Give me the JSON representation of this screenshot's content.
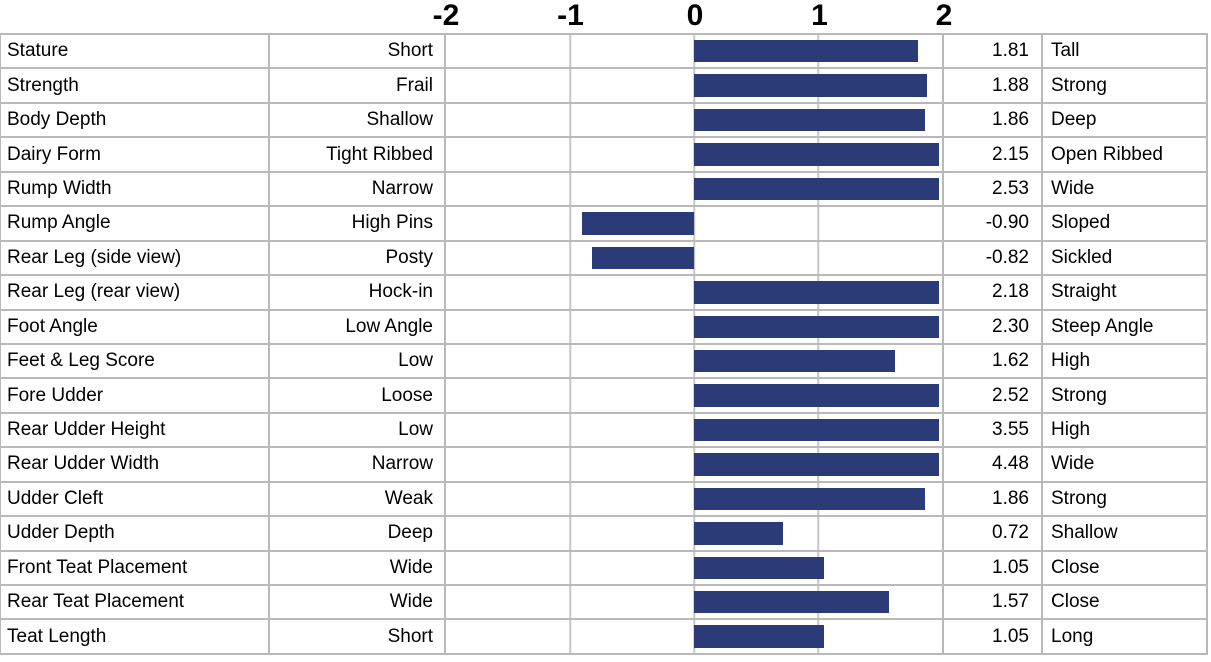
{
  "chart_data": {
    "type": "bar",
    "orientation": "horizontal",
    "title": "",
    "xlabel": "",
    "ylabel": "",
    "xlim": [
      -2,
      2
    ],
    "axis_tick_labels": [
      "-2",
      "-1",
      "0",
      "1",
      "2"
    ],
    "axis_tick_values": [
      -2,
      -1,
      0,
      1,
      2
    ],
    "grid": true,
    "bars_clipped_at_axis_max": true,
    "categories": [
      "Stature",
      "Strength",
      "Body Depth",
      "Dairy Form",
      "Rump Width",
      "Rump Angle",
      "Rear Leg (side view)",
      "Rear Leg (rear view)",
      "Foot Angle",
      "Feet & Leg Score",
      "Fore Udder",
      "Rear Udder Height",
      "Rear Udder Width",
      "Udder Cleft",
      "Udder Depth",
      "Front Teat Placement",
      "Rear Teat Placement",
      "Teat Length"
    ],
    "values": [
      1.81,
      1.88,
      1.86,
      2.15,
      2.53,
      -0.9,
      -0.82,
      2.18,
      2.3,
      1.62,
      2.52,
      3.55,
      4.48,
      1.86,
      0.72,
      1.05,
      1.57,
      1.05
    ],
    "rows": [
      {
        "trait": "Stature",
        "low": "Short",
        "value": 1.81,
        "value_display": "1.81",
        "high": "Tall"
      },
      {
        "trait": "Strength",
        "low": "Frail",
        "value": 1.88,
        "value_display": "1.88",
        "high": "Strong"
      },
      {
        "trait": "Body Depth",
        "low": "Shallow",
        "value": 1.86,
        "value_display": "1.86",
        "high": "Deep"
      },
      {
        "trait": "Dairy Form",
        "low": "Tight Ribbed",
        "value": 2.15,
        "value_display": "2.15",
        "high": "Open Ribbed"
      },
      {
        "trait": "Rump Width",
        "low": "Narrow",
        "value": 2.53,
        "value_display": "2.53",
        "high": "Wide"
      },
      {
        "trait": "Rump Angle",
        "low": "High Pins",
        "value": -0.9,
        "value_display": "-0.90",
        "high": "Sloped"
      },
      {
        "trait": "Rear Leg (side view)",
        "low": "Posty",
        "value": -0.82,
        "value_display": "-0.82",
        "high": "Sickled"
      },
      {
        "trait": "Rear Leg (rear view)",
        "low": "Hock-in",
        "value": 2.18,
        "value_display": "2.18",
        "high": "Straight"
      },
      {
        "trait": "Foot Angle",
        "low": "Low Angle",
        "value": 2.3,
        "value_display": "2.30",
        "high": "Steep Angle"
      },
      {
        "trait": "Feet & Leg Score",
        "low": "Low",
        "value": 1.62,
        "value_display": "1.62",
        "high": "High"
      },
      {
        "trait": "Fore Udder",
        "low": "Loose",
        "value": 2.52,
        "value_display": "2.52",
        "high": "Strong"
      },
      {
        "trait": "Rear Udder Height",
        "low": "Low",
        "value": 3.55,
        "value_display": "3.55",
        "high": "High"
      },
      {
        "trait": "Rear Udder Width",
        "low": "Narrow",
        "value": 4.48,
        "value_display": "4.48",
        "high": "Wide"
      },
      {
        "trait": "Udder Cleft",
        "low": "Weak",
        "value": 1.86,
        "value_display": "1.86",
        "high": "Strong"
      },
      {
        "trait": "Udder Depth",
        "low": "Deep",
        "value": 0.72,
        "value_display": "0.72",
        "high": "Shallow"
      },
      {
        "trait": "Front Teat Placement",
        "low": "Wide",
        "value": 1.05,
        "value_display": "1.05",
        "high": "Close"
      },
      {
        "trait": "Rear Teat Placement",
        "low": "Wide",
        "value": 1.57,
        "value_display": "1.57",
        "high": "Close"
      },
      {
        "trait": "Teat Length",
        "low": "Short",
        "value": 1.05,
        "value_display": "1.05",
        "high": "Long"
      }
    ],
    "colors": {
      "bar": "#2B3B78",
      "cell_border": "#b9b9b9",
      "grid_line": "#c6c6c6",
      "text": "#000000",
      "background": "#ffffff"
    }
  }
}
